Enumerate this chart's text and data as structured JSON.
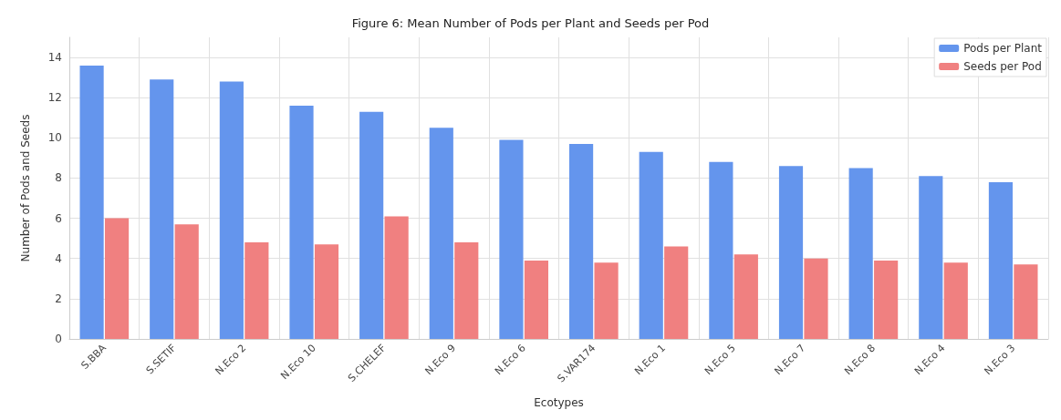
{
  "chart_data": {
    "type": "bar",
    "title": "Figure 6: Mean Number of Pods per Plant and Seeds per Pod",
    "xlabel": "Ecotypes",
    "ylabel": "Number of Pods and Seeds",
    "categories": [
      "S.BBA",
      "S.SETIF",
      "N.Eco 2",
      "N.Eco 10",
      "S.CHELEF",
      "N.Eco 9",
      "N.Eco 6",
      "S.VAR174",
      "N.Eco 1",
      "N.Eco 5",
      "N.Eco 7",
      "N.Eco 8",
      "N.Eco 4",
      "N.Eco 3"
    ],
    "series": [
      {
        "name": "Pods per Plant",
        "color": "#6495ed",
        "values": [
          13.6,
          12.9,
          12.8,
          11.6,
          11.3,
          10.5,
          9.9,
          9.7,
          9.3,
          8.8,
          8.6,
          8.5,
          8.1,
          7.8
        ]
      },
      {
        "name": "Seeds per Pod",
        "color": "#f08080",
        "values": [
          6.0,
          5.7,
          4.8,
          4.7,
          6.1,
          4.8,
          3.9,
          3.8,
          4.6,
          4.2,
          4.0,
          3.9,
          3.8,
          3.7
        ]
      }
    ],
    "ylim": [
      0,
      15
    ],
    "yticks": [
      0,
      2,
      4,
      6,
      8,
      10,
      12,
      14
    ],
    "grid": true,
    "legend": "top right"
  }
}
